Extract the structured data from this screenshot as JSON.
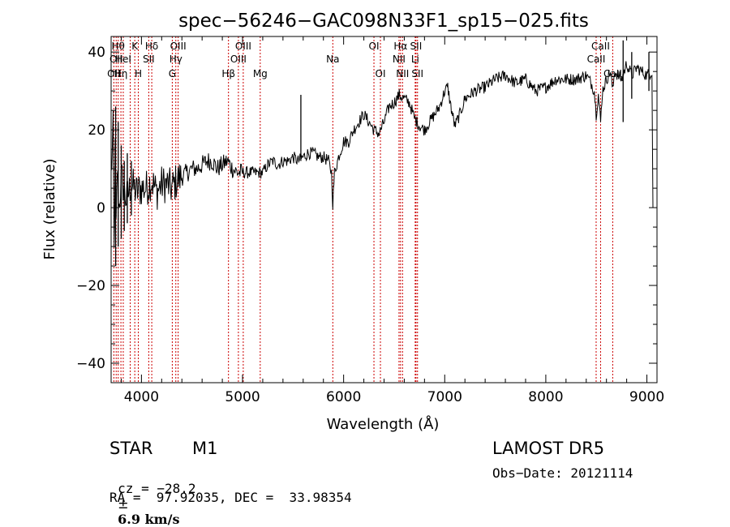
{
  "chart_data": {
    "type": "line",
    "title": "spec−56246−GAC098N33F1_sp15−025.fits",
    "xlabel": "Wavelength (Å)",
    "ylabel": "Flux (relative)",
    "xlim": [
      3700,
      9100
    ],
    "ylim": [
      -45,
      44
    ],
    "xticks": [
      {
        "value": 4000,
        "label": "4000"
      },
      {
        "value": 5000,
        "label": "5000"
      },
      {
        "value": 6000,
        "label": "6000"
      },
      {
        "value": 7000,
        "label": "7000"
      },
      {
        "value": 8000,
        "label": "8000"
      },
      {
        "value": 9000,
        "label": "9000"
      }
    ],
    "yticks": [
      {
        "value": -40,
        "label": "−40"
      },
      {
        "value": -20,
        "label": "−20"
      },
      {
        "value": 0,
        "label": "0"
      },
      {
        "value": 20,
        "label": "20"
      },
      {
        "value": 40,
        "label": "40"
      }
    ],
    "line_color": "#000000",
    "marker_color": "#cc0000",
    "series_points": [
      [
        3700,
        8
      ],
      [
        3720,
        20
      ],
      [
        3730,
        -12
      ],
      [
        3740,
        14
      ],
      [
        3750,
        -6
      ],
      [
        3760,
        10
      ],
      [
        3780,
        0
      ],
      [
        3800,
        8
      ],
      [
        3850,
        2
      ],
      [
        3900,
        6
      ],
      [
        3950,
        4
      ],
      [
        4000,
        5
      ],
      [
        4050,
        5
      ],
      [
        4100,
        7
      ],
      [
        4150,
        4
      ],
      [
        4200,
        6
      ],
      [
        4250,
        6
      ],
      [
        4300,
        5
      ],
      [
        4350,
        7
      ],
      [
        4400,
        8
      ],
      [
        4450,
        9
      ],
      [
        4500,
        10
      ],
      [
        4550,
        10
      ],
      [
        4600,
        11
      ],
      [
        4650,
        12
      ],
      [
        4700,
        12
      ],
      [
        4750,
        10
      ],
      [
        4800,
        11
      ],
      [
        4850,
        12
      ],
      [
        4900,
        10
      ],
      [
        4950,
        9
      ],
      [
        5000,
        9
      ],
      [
        5050,
        9
      ],
      [
        5100,
        9
      ],
      [
        5150,
        9
      ],
      [
        5200,
        9
      ],
      [
        5250,
        11
      ],
      [
        5300,
        12
      ],
      [
        5350,
        11
      ],
      [
        5400,
        12
      ],
      [
        5450,
        12
      ],
      [
        5500,
        13
      ],
      [
        5550,
        12
      ],
      [
        5600,
        13
      ],
      [
        5650,
        14
      ],
      [
        5700,
        14
      ],
      [
        5750,
        13
      ],
      [
        5800,
        13
      ],
      [
        5850,
        12
      ],
      [
        5880,
        9
      ],
      [
        5893,
        1
      ],
      [
        5910,
        9
      ],
      [
        5950,
        13
      ],
      [
        6000,
        17
      ],
      [
        6050,
        17
      ],
      [
        6100,
        20
      ],
      [
        6150,
        22
      ],
      [
        6200,
        24
      ],
      [
        6250,
        22
      ],
      [
        6300,
        20
      ],
      [
        6350,
        19
      ],
      [
        6400,
        22
      ],
      [
        6450,
        26
      ],
      [
        6500,
        27
      ],
      [
        6550,
        29
      ],
      [
        6600,
        28
      ],
      [
        6650,
        27
      ],
      [
        6700,
        23
      ],
      [
        6750,
        21
      ],
      [
        6800,
        20
      ],
      [
        6850,
        22
      ],
      [
        6900,
        24
      ],
      [
        6950,
        26
      ],
      [
        7000,
        30
      ],
      [
        7030,
        31
      ],
      [
        7060,
        26
      ],
      [
        7100,
        21
      ],
      [
        7150,
        24
      ],
      [
        7200,
        28
      ],
      [
        7300,
        30
      ],
      [
        7400,
        31
      ],
      [
        7500,
        33
      ],
      [
        7600,
        34
      ],
      [
        7700,
        32
      ],
      [
        7800,
        33
      ],
      [
        7900,
        30
      ],
      [
        8000,
        31
      ],
      [
        8100,
        33
      ],
      [
        8200,
        33
      ],
      [
        8300,
        33
      ],
      [
        8400,
        34
      ],
      [
        8450,
        32
      ],
      [
        8480,
        30
      ],
      [
        8498,
        24
      ],
      [
        8520,
        29
      ],
      [
        8542,
        22
      ],
      [
        8560,
        30
      ],
      [
        8600,
        33
      ],
      [
        8640,
        35
      ],
      [
        8662,
        30
      ],
      [
        8680,
        35
      ],
      [
        8750,
        33
      ],
      [
        8800,
        37
      ],
      [
        8850,
        34
      ],
      [
        8900,
        36
      ],
      [
        8950,
        35
      ],
      [
        9000,
        34
      ],
      [
        9050,
        35
      ],
      [
        9060,
        0
      ]
    ],
    "spikes": [
      [
        3745,
        26,
        -15
      ],
      [
        3770,
        22,
        -10
      ],
      [
        3800,
        16,
        -8
      ],
      [
        3830,
        12,
        -6
      ],
      [
        3860,
        14,
        -4
      ],
      [
        3900,
        12,
        -2
      ],
      [
        5577,
        29,
        12
      ],
      [
        8765,
        43,
        22
      ],
      [
        8850,
        40,
        28
      ],
      [
        9020,
        40,
        30
      ]
    ],
    "line_markers": [
      {
        "wavelength": 3727,
        "labels": [
          {
            "text": "OII",
            "row": 2
          }
        ]
      },
      {
        "wavelength": 3750,
        "labels": [
          {
            "text": "OII",
            "row": 1
          }
        ]
      },
      {
        "wavelength": 3770,
        "labels": [
          {
            "text": "Hθ",
            "row": 0
          }
        ]
      },
      {
        "wavelength": 3797,
        "labels": [
          {
            "text": "Hη",
            "row": 2
          }
        ]
      },
      {
        "wavelength": 3820,
        "labels": [
          {
            "text": "HeI",
            "row": 1
          }
        ]
      },
      {
        "wavelength": 3889,
        "labels": []
      },
      {
        "wavelength": 3934,
        "labels": [
          {
            "text": "K",
            "row": 0
          }
        ]
      },
      {
        "wavelength": 3969,
        "labels": [
          {
            "text": "H",
            "row": 2
          }
        ]
      },
      {
        "wavelength": 4072,
        "labels": [
          {
            "text": "SII",
            "row": 1
          }
        ]
      },
      {
        "wavelength": 4102,
        "labels": [
          {
            "text": "Hδ",
            "row": 0
          }
        ]
      },
      {
        "wavelength": 4305,
        "labels": [
          {
            "text": "G",
            "row": 2
          }
        ]
      },
      {
        "wavelength": 4340,
        "labels": [
          {
            "text": "Hγ",
            "row": 1
          }
        ]
      },
      {
        "wavelength": 4363,
        "labels": [
          {
            "text": "OIII",
            "row": 0
          }
        ]
      },
      {
        "wavelength": 4861,
        "labels": [
          {
            "text": "Hβ",
            "row": 2
          }
        ]
      },
      {
        "wavelength": 4959,
        "labels": [
          {
            "text": "OIII",
            "row": 1
          }
        ]
      },
      {
        "wavelength": 5007,
        "labels": [
          {
            "text": "OIII",
            "row": 0
          }
        ]
      },
      {
        "wavelength": 5175,
        "labels": [
          {
            "text": "Mg",
            "row": 2
          }
        ]
      },
      {
        "wavelength": 5893,
        "labels": [
          {
            "text": "Na",
            "row": 1
          }
        ]
      },
      {
        "wavelength": 6300,
        "labels": [
          {
            "text": "OI",
            "row": 0
          }
        ]
      },
      {
        "wavelength": 6364,
        "labels": [
          {
            "text": "OI",
            "row": 2
          }
        ]
      },
      {
        "wavelength": 6548,
        "labels": [
          {
            "text": "NII",
            "row": 1
          }
        ]
      },
      {
        "wavelength": 6563,
        "labels": [
          {
            "text": "Hα",
            "row": 0
          }
        ]
      },
      {
        "wavelength": 6583,
        "labels": [
          {
            "text": "NII",
            "row": 2
          }
        ]
      },
      {
        "wavelength": 6708,
        "labels": [
          {
            "text": "Li",
            "row": 1
          }
        ]
      },
      {
        "wavelength": 6716,
        "labels": [
          {
            "text": "SII",
            "row": 0
          }
        ]
      },
      {
        "wavelength": 6731,
        "labels": [
          {
            "text": "SII",
            "row": 2
          }
        ]
      },
      {
        "wavelength": 8498,
        "labels": [
          {
            "text": "CaII",
            "row": 1
          }
        ]
      },
      {
        "wavelength": 8542,
        "labels": [
          {
            "text": "CaII",
            "row": 0
          }
        ]
      },
      {
        "wavelength": 8662,
        "labels": [
          {
            "text": "CaII",
            "row": 2
          }
        ]
      }
    ]
  },
  "info": {
    "object_class": "STAR",
    "subclass": "M1",
    "survey": "LAMOST DR5",
    "cz_label": "cz = ",
    "cz_value": "−28.2",
    "cz_pm": "±",
    "cz_err": "6.9 km/s",
    "obs_date": "Obs−Date: 20121114",
    "radec": "RA =  97.92035, DEC =  33.98354"
  }
}
